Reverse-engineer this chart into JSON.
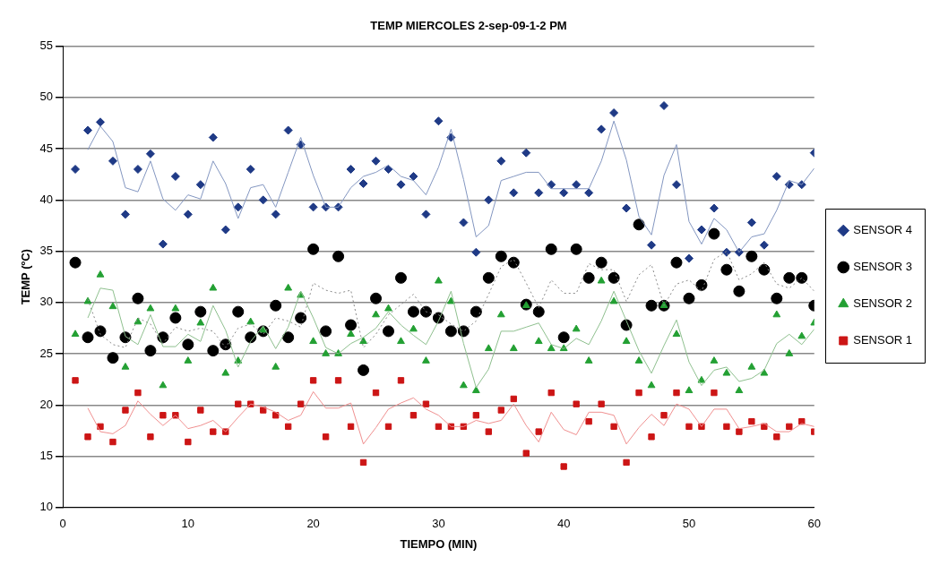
{
  "chart_data": {
    "type": "scatter",
    "title": "TEMP MIERCOLES 2-sep-09-1-2 PM",
    "xlabel": "TIEMPO (MIN)",
    "ylabel": "TEMP (ºC)",
    "x": [
      1,
      2,
      3,
      4,
      5,
      6,
      7,
      8,
      9,
      10,
      11,
      12,
      13,
      14,
      15,
      16,
      17,
      18,
      19,
      20,
      21,
      22,
      23,
      24,
      25,
      26,
      27,
      28,
      29,
      30,
      31,
      32,
      33,
      34,
      35,
      36,
      37,
      38,
      39,
      40,
      41,
      42,
      43,
      44,
      45,
      46,
      47,
      48,
      49,
      50,
      51,
      52,
      53,
      54,
      55,
      56,
      57,
      58,
      59,
      60
    ],
    "xlim": [
      0,
      60
    ],
    "xticks": [
      0,
      10,
      20,
      30,
      40,
      50,
      60
    ],
    "ylim": [
      10,
      55
    ],
    "yticks": [
      10,
      15,
      20,
      25,
      30,
      35,
      40,
      45,
      50,
      55
    ],
    "grid": "y",
    "legend": "right",
    "series": [
      {
        "name": "SENSOR 4",
        "color": "#1f3a86",
        "marker": "diamond",
        "values": [
          43,
          46.8,
          47.6,
          43.8,
          38.6,
          43,
          44.5,
          35.7,
          42.3,
          38.6,
          41.5,
          46.1,
          37.1,
          39.3,
          43,
          40,
          38.6,
          46.8,
          45.4,
          39.3,
          39.3,
          39.3,
          43,
          41.6,
          43.8,
          43,
          41.5,
          42.3,
          38.6,
          47.7,
          46.1,
          37.8,
          34.9,
          40,
          43.8,
          40.7,
          44.6,
          40.7,
          41.5,
          40.7,
          41.5,
          40.7,
          46.9,
          48.5,
          39.2,
          null,
          35.6,
          49.2,
          41.5,
          34.3,
          37.1,
          39.2,
          34.9,
          34.9,
          37.8,
          35.6,
          42.3,
          41.5,
          41.5,
          44.6
        ]
      },
      {
        "name": "SENSOR 3",
        "color": "#000000",
        "marker": "circle",
        "values": [
          33.9,
          26.6,
          27.2,
          24.6,
          26.6,
          30.4,
          25.3,
          26.6,
          28.5,
          25.9,
          29.1,
          25.3,
          25.9,
          29.1,
          26.6,
          27.2,
          29.7,
          26.6,
          28.5,
          35.2,
          27.2,
          34.5,
          27.8,
          23.4,
          30.4,
          27.2,
          32.4,
          29.1,
          29.1,
          28.5,
          27.2,
          27.2,
          29.1,
          32.4,
          34.5,
          33.9,
          29.8,
          29.1,
          35.2,
          26.6,
          35.2,
          32.4,
          33.9,
          32.4,
          27.8,
          37.6,
          29.7,
          29.7,
          33.9,
          30.4,
          31.7,
          36.7,
          33.2,
          31.1,
          34.5,
          33.2,
          30.4,
          32.4,
          32.4,
          29.7
        ]
      },
      {
        "name": "SENSOR 2",
        "color": "#23a033",
        "marker": "triangle",
        "values": [
          26.9,
          30.1,
          32.7,
          29.6,
          23.7,
          28.1,
          29.4,
          21.9,
          29.4,
          24.3,
          28,
          31.4,
          23.1,
          24.3,
          28.1,
          27.3,
          23.7,
          31.4,
          30.7,
          26.2,
          25,
          25,
          26.9,
          26.2,
          28.8,
          29.4,
          26.2,
          27.4,
          24.3,
          32.1,
          30.1,
          21.9,
          21.4,
          25.5,
          28.8,
          25.5,
          29.7,
          26.2,
          25.5,
          25.5,
          27.4,
          24.3,
          32.1,
          30.1,
          26.2,
          24.3,
          21.9,
          29.7,
          26.9,
          21.4,
          22.4,
          24.3,
          23.1,
          21.4,
          23.7,
          23.1,
          28.8,
          25,
          26.7,
          28
        ]
      },
      {
        "name": "SENSOR 1",
        "color": "#cc1515",
        "marker": "square",
        "values": [
          22.4,
          16.9,
          17.9,
          16.4,
          19.5,
          21.2,
          16.9,
          19,
          19,
          16.4,
          19.5,
          17.4,
          17.4,
          20.1,
          20.1,
          19.5,
          19,
          17.9,
          20.1,
          22.4,
          16.9,
          22.4,
          17.9,
          14.4,
          21.2,
          17.9,
          22.4,
          19,
          20.1,
          17.9,
          17.9,
          17.9,
          19,
          17.4,
          19.5,
          20.6,
          15.3,
          17.4,
          21.2,
          14,
          20.1,
          18.4,
          20.1,
          17.9,
          14.4,
          21.2,
          16.9,
          19,
          21.2,
          17.9,
          17.9,
          21.2,
          17.9,
          17.4,
          18.4,
          17.9,
          16.9,
          17.9,
          18.4,
          17.4
        ]
      },
      {
        "type": "line",
        "color": "#8396c0",
        "line_style": "solid",
        "x": [
          2,
          3,
          4,
          5,
          6,
          7,
          8,
          9,
          10,
          11,
          12,
          13,
          14,
          15,
          16,
          17,
          18,
          19,
          20,
          21,
          22,
          23,
          24,
          25,
          26,
          27,
          28,
          29,
          30,
          31,
          32,
          33,
          34,
          35,
          36,
          37,
          38,
          39,
          40,
          41,
          42,
          43,
          44,
          45,
          46,
          47,
          48,
          49,
          50,
          51,
          52,
          53,
          54,
          55,
          56,
          57,
          58,
          59,
          60
        ],
        "values": [
          44.9,
          47.2,
          45.7,
          41.2,
          40.8,
          43.8,
          40.1,
          39,
          40.5,
          40.1,
          43.8,
          41.6,
          38.2,
          41.2,
          41.5,
          39.3,
          42.7,
          46.1,
          42.4,
          39.3,
          39.3,
          41.2,
          42.3,
          42.7,
          43.4,
          42.3,
          41.9,
          40.5,
          43.2,
          46.9,
          42,
          36.4,
          37.5,
          41.9,
          42.3,
          42.7,
          42.7,
          41.1,
          41.1,
          41.1,
          41.1,
          43.8,
          47.7,
          43.9,
          38.4,
          36.6,
          42.4,
          45.4,
          37.9,
          35.7,
          38.2,
          37.1,
          34.9,
          36.4,
          36.7,
          39,
          41.9,
          41.5,
          43.1
        ]
      },
      {
        "type": "line",
        "color": "#8a8a8a",
        "line_style": "dotted",
        "x": [
          2,
          3,
          4,
          5,
          6,
          7,
          8,
          9,
          10,
          11,
          12,
          13,
          14,
          15,
          16,
          17,
          18,
          19,
          20,
          21,
          22,
          23,
          24,
          25,
          26,
          27,
          28,
          29,
          30,
          31,
          32,
          33,
          34,
          35,
          36,
          37,
          38,
          39,
          40,
          41,
          42,
          43,
          44,
          45,
          46,
          47,
          48,
          49,
          50,
          51,
          52,
          53,
          54,
          55,
          56,
          57,
          58,
          59,
          60
        ],
        "values": [
          30.3,
          26.9,
          25.9,
          25.6,
          28.5,
          27.9,
          26,
          27.6,
          27.2,
          27.5,
          27.2,
          25.6,
          27.5,
          27.9,
          26.9,
          28.5,
          28.2,
          27.6,
          31.9,
          31.2,
          30.9,
          31.2,
          25.6,
          26.9,
          28.8,
          29.8,
          30.8,
          29.1,
          28.8,
          27.9,
          27.2,
          28.2,
          30.8,
          33.5,
          34.2,
          31.9,
          29.5,
          32.2,
          30.9,
          30.9,
          33.8,
          33.2,
          33.2,
          30.1,
          32.7,
          33.7,
          29.7,
          31.8,
          32.2,
          31.1,
          34.2,
          35,
          32.2,
          32.8,
          33.9,
          31.8,
          31.4,
          32.4,
          31.1
        ]
      },
      {
        "type": "line",
        "color": "#8fc08f",
        "line_style": "solid",
        "x": [
          2,
          3,
          4,
          5,
          6,
          7,
          8,
          9,
          10,
          11,
          12,
          13,
          14,
          15,
          16,
          17,
          18,
          19,
          20,
          21,
          22,
          23,
          24,
          25,
          26,
          27,
          28,
          29,
          30,
          31,
          32,
          33,
          34,
          35,
          36,
          37,
          38,
          39,
          40,
          41,
          42,
          43,
          44,
          45,
          46,
          47,
          48,
          49,
          50,
          51,
          52,
          53,
          54,
          55,
          56,
          57,
          58,
          59,
          60
        ],
        "values": [
          28.5,
          31.4,
          31.2,
          26.7,
          25.9,
          28.8,
          25.7,
          25.7,
          26.9,
          26.2,
          29.7,
          27.3,
          23.7,
          26.2,
          27.7,
          25.5,
          27.6,
          31.1,
          28.5,
          25.6,
          25,
          26,
          26.6,
          27.5,
          29.1,
          27.8,
          26.8,
          25.9,
          28.2,
          31.1,
          26,
          21.7,
          23.5,
          27.2,
          27.2,
          27.6,
          28,
          25.9,
          25.5,
          26.5,
          25.9,
          28.2,
          31.1,
          28.2,
          25.3,
          23.1,
          25.8,
          28.3,
          24.2,
          21.9,
          23.4,
          23.7,
          22.3,
          22.6,
          23.4,
          26,
          26.9,
          25.9,
          27.4
        ]
      },
      {
        "type": "line",
        "color": "#f09090",
        "line_style": "solid",
        "x": [
          2,
          3,
          4,
          5,
          6,
          7,
          8,
          9,
          10,
          11,
          12,
          13,
          14,
          15,
          16,
          17,
          18,
          19,
          20,
          21,
          22,
          23,
          24,
          25,
          26,
          27,
          28,
          29,
          30,
          31,
          32,
          33,
          34,
          35,
          36,
          37,
          38,
          39,
          40,
          41,
          42,
          43,
          44,
          45,
          46,
          47,
          48,
          49,
          50,
          51,
          52,
          53,
          54,
          55,
          56,
          57,
          58,
          59,
          60
        ],
        "values": [
          19.7,
          17.4,
          17.2,
          18,
          20.4,
          19.1,
          18,
          19,
          17.7,
          18,
          18.5,
          17.4,
          18.8,
          20.1,
          19.8,
          19.3,
          18.5,
          19,
          21.3,
          19.7,
          19.7,
          20.2,
          16.2,
          17.8,
          19.6,
          20.2,
          20.7,
          19.6,
          19,
          17.9,
          17.9,
          18.5,
          18.2,
          18.5,
          20.1,
          18,
          16.4,
          19.3,
          17.6,
          17.1,
          19.3,
          19.3,
          19,
          16.2,
          17.8,
          19.1,
          18,
          20.1,
          19.6,
          17.9,
          19.6,
          19.6,
          17.7,
          17.9,
          18.2,
          17.4,
          17.4,
          18.2,
          17.9
        ]
      }
    ]
  }
}
